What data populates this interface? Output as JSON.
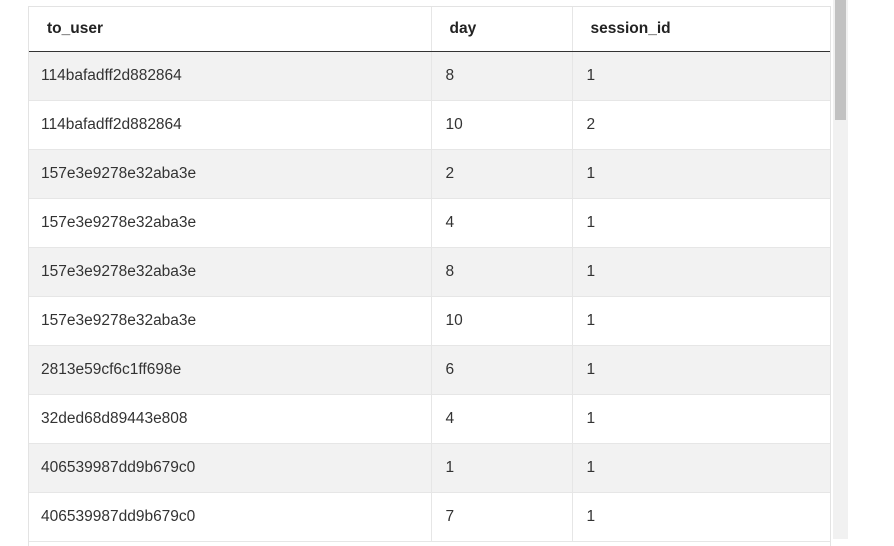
{
  "table": {
    "columns": [
      "to_user",
      "day",
      "session_id"
    ],
    "rows": [
      [
        "114bafadff2d882864",
        "8",
        "1"
      ],
      [
        "114bafadff2d882864",
        "10",
        "2"
      ],
      [
        "157e3e9278e32aba3e",
        "2",
        "1"
      ],
      [
        "157e3e9278e32aba3e",
        "4",
        "1"
      ],
      [
        "157e3e9278e32aba3e",
        "8",
        "1"
      ],
      [
        "157e3e9278e32aba3e",
        "10",
        "1"
      ],
      [
        "2813e59cf6c1ff698e",
        "6",
        "1"
      ],
      [
        "32ded68d89443e808",
        "4",
        "1"
      ],
      [
        "406539987dd9b679c0",
        "1",
        "1"
      ],
      [
        "406539987dd9b679c0",
        "7",
        "1"
      ]
    ]
  },
  "colors": {
    "header_border": "#333333",
    "row_stripe": "#f2f2f2",
    "grid_line": "#e6e6e6",
    "scrollbar_thumb": "#c2c2c2"
  }
}
